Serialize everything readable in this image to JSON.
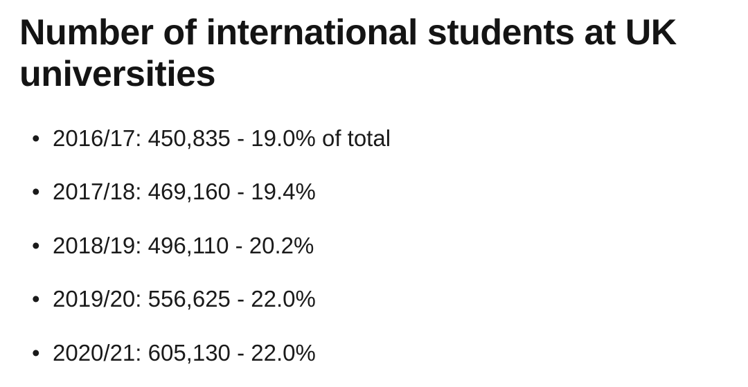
{
  "title": "Number of international students at UK universities",
  "items": [
    {
      "text": "2016/17: 450,835 - 19.0% of total"
    },
    {
      "text": "2017/18: 469,160 - 19.4%"
    },
    {
      "text": "2018/19: 496,110 - 20.2%"
    },
    {
      "text": "2019/20: 556,625 - 22.0%"
    },
    {
      "text": "2020/21: 605,130 - 22.0%"
    }
  ],
  "colors": {
    "background": "#ffffff",
    "text": "#1a1a1a",
    "title": "#141414"
  },
  "typography": {
    "title_fontsize": 52,
    "title_fontweight": 700,
    "item_fontsize": 33,
    "item_fontweight": 400
  }
}
